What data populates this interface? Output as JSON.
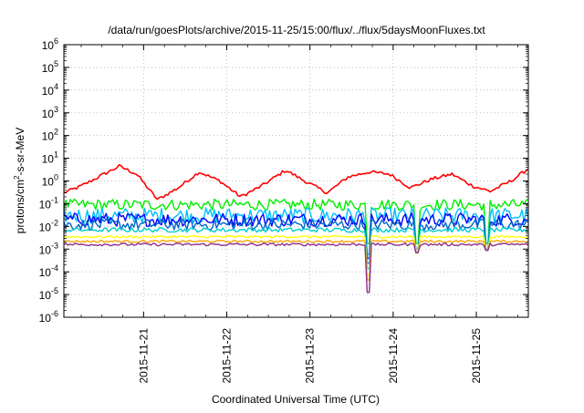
{
  "chart_data": {
    "type": "line",
    "title": "/data/run/goesPlots/archive/2015-11-25/15:00/flux/../flux/5daysMoonFluxes.txt",
    "xlabel": "Coordinated Universal Time (UTC)",
    "ylabel": {
      "pre": "protons/cm",
      "sup": "2",
      "post": "-s-sr-MeV"
    },
    "yscale": "log",
    "ylim_exponents": [
      -6,
      6
    ],
    "ytick_exponents": [
      -6,
      -5,
      -4,
      -3,
      -2,
      -1,
      0,
      1,
      2,
      3,
      4,
      5,
      6
    ],
    "ytick_base": "10",
    "xlim": [
      "2015-11-20T01:00",
      "2015-11-25T15:00"
    ],
    "xticks": [
      {
        "label": "2015-11-21",
        "date": "2015-11-21T00:00"
      },
      {
        "label": "2015-11-22",
        "date": "2015-11-22T00:00"
      },
      {
        "label": "2015-11-23",
        "date": "2015-11-23T00:00"
      },
      {
        "label": "2015-11-24",
        "date": "2015-11-24T00:00"
      },
      {
        "label": "2015-11-25",
        "date": "2015-11-25T00:00"
      }
    ],
    "grid": true,
    "series": [
      {
        "color": "#ff0000",
        "level": 0.3,
        "shape": "diurnal-high",
        "lowpoints": [
          [
            "2015-11-20T01:00",
            0.3
          ],
          [
            "2015-11-20T06:00",
            0.6
          ],
          [
            "2015-11-20T12:00",
            1.8
          ],
          [
            "2015-11-20T17:00",
            4.5
          ],
          [
            "2015-11-20T22:00",
            2.0
          ],
          [
            "2015-11-21T04:00",
            0.15
          ],
          [
            "2015-11-21T10:00",
            0.5
          ],
          [
            "2015-11-21T16:00",
            2.5
          ],
          [
            "2015-11-21T22:00",
            1.0
          ],
          [
            "2015-11-22T04:00",
            0.2
          ],
          [
            "2015-11-22T10:00",
            0.6
          ],
          [
            "2015-11-22T17:00",
            3.0
          ],
          [
            "2015-11-22T23:00",
            0.9
          ],
          [
            "2015-11-23T05:00",
            0.3
          ],
          [
            "2015-11-23T11:00",
            1.5
          ],
          [
            "2015-11-23T17:00",
            2.5
          ],
          [
            "2015-11-23T23:00",
            2.0
          ],
          [
            "2015-11-24T05:00",
            0.5
          ],
          [
            "2015-11-24T11:00",
            1.2
          ],
          [
            "2015-11-24T17:00",
            2.0
          ],
          [
            "2015-11-24T23:00",
            0.6
          ],
          [
            "2015-11-25T04:00",
            0.35
          ],
          [
            "2015-11-25T10:00",
            1.0
          ],
          [
            "2015-11-25T15:00",
            3.5
          ]
        ]
      },
      {
        "color": "#00ee00",
        "level": 0.09,
        "noise": 0.25
      },
      {
        "color": "#00bfff",
        "level": 0.03,
        "noise": 0.35
      },
      {
        "color": "#0000ff",
        "level": 0.02,
        "noise": 0.3
      },
      {
        "color": "#0066cc",
        "level": 0.012,
        "noise": 0.25
      },
      {
        "color": "#00cdcd",
        "level": 0.007,
        "noise": 0.1
      },
      {
        "color": "#ffff00",
        "level": 0.0035,
        "noise": 0.05
      },
      {
        "color": "#ffa500",
        "level": 0.0022,
        "noise": 0.05
      },
      {
        "color": "#8b2f8b",
        "level": 0.0016,
        "noise": 0.06,
        "dips": [
          [
            "2015-11-23T17:00",
            1.25e-05
          ],
          [
            "2015-11-24T07:00",
            0.0007
          ],
          [
            "2015-11-25T03:00",
            0.0009
          ]
        ]
      }
    ]
  }
}
